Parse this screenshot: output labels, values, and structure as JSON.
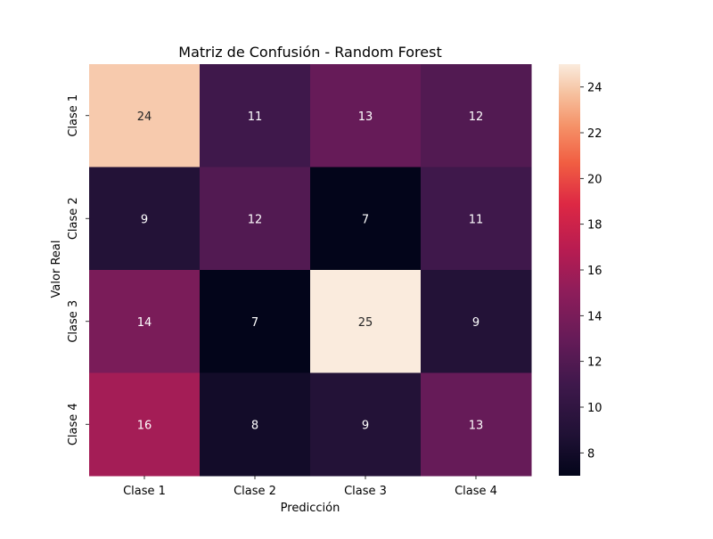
{
  "chart_data": {
    "type": "heatmap",
    "title": "Matriz de Confusión - Random Forest",
    "xlabel": "Predicción",
    "ylabel": "Valor Real",
    "x_categories": [
      "Clase 1",
      "Clase 2",
      "Clase 3",
      "Clase 4"
    ],
    "y_categories": [
      "Clase 1",
      "Clase 2",
      "Clase 3",
      "Clase 4"
    ],
    "values": [
      [
        24,
        11,
        13,
        12
      ],
      [
        9,
        12,
        7,
        11
      ],
      [
        14,
        7,
        25,
        9
      ],
      [
        16,
        8,
        9,
        13
      ]
    ],
    "colorbar": {
      "range": [
        7,
        25
      ],
      "ticks": [
        8,
        10,
        12,
        14,
        16,
        18,
        20,
        22,
        24
      ],
      "colormap": "rocket"
    }
  }
}
